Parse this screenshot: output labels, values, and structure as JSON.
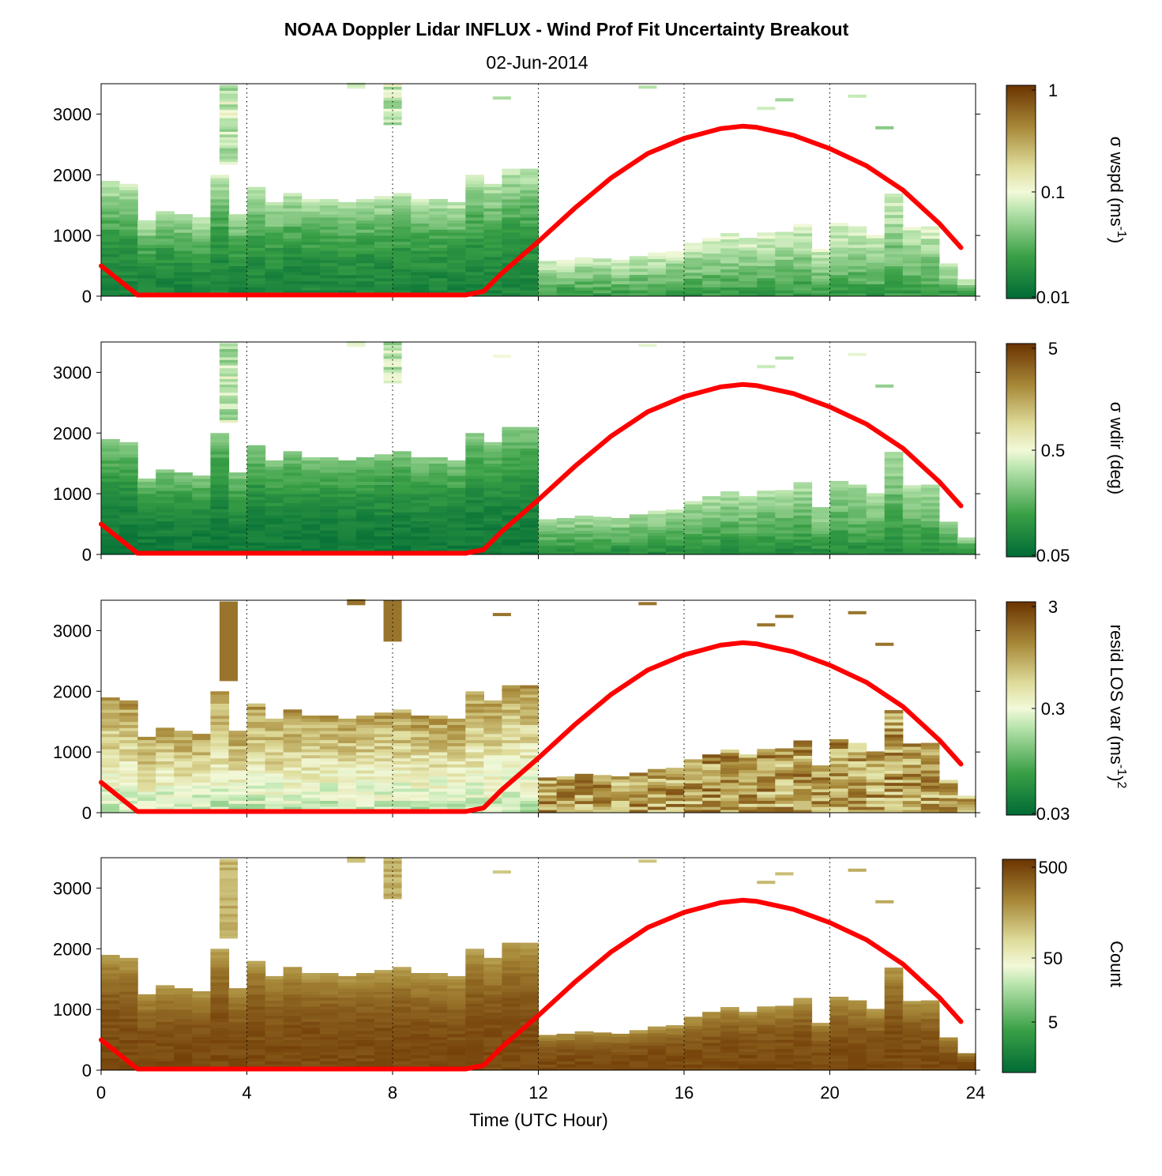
{
  "title": "NOAA Doppler Lidar INFLUX - Wind Prof Fit Uncertainty Breakout",
  "subtitle": "02-Jun-2014",
  "colors": {
    "boundary_line": "#ff0000",
    "scale_low": "#006b35",
    "scale_mid": "#f2f9d9",
    "scale_high": "#6b3300"
  },
  "chart_data": {
    "type": "heatmap",
    "xlabel": "Time (UTC Hour)",
    "xlim": [
      0,
      24
    ],
    "x_ticks": [
      "0",
      "4",
      "8",
      "12",
      "16",
      "20",
      "24"
    ],
    "ylim": [
      0,
      3500
    ],
    "y_ticks": [
      "0",
      "1000",
      "2000",
      "3000"
    ],
    "grid": "dotted vertical lines every 4 hours",
    "time_bins_hours": [
      0,
      0.5,
      1,
      1.5,
      2,
      2.5,
      3,
      3.5,
      4,
      4.5,
      5,
      5.5,
      6,
      6.5,
      7,
      7.5,
      8,
      8.5,
      9,
      9.5,
      10,
      10.5,
      11,
      11.5,
      12,
      12.5,
      13,
      13.5,
      14,
      14.5,
      15,
      15.5,
      16,
      16.5,
      17,
      17.5,
      18,
      18.5,
      19,
      19.5,
      20,
      20.5,
      21,
      21.5,
      22,
      22.5,
      23,
      23.5
    ],
    "profile_top_height_m": [
      1900,
      1850,
      1250,
      1400,
      1350,
      1300,
      2000,
      1350,
      1800,
      1550,
      1700,
      1600,
      1600,
      1550,
      1600,
      1650,
      1700,
      1600,
      1600,
      1550,
      2000,
      1850,
      2100,
      2100,
      580,
      600,
      640,
      620,
      600,
      660,
      720,
      740,
      880,
      960,
      1040,
      960,
      1050,
      1060,
      1190,
      780,
      1210,
      1150,
      1010,
      1690,
      1140,
      1150,
      540,
      280
    ],
    "boundary_layer_line": {
      "name": "",
      "x": [
        0,
        1,
        2,
        3,
        4,
        5,
        6,
        7,
        8,
        9,
        10,
        10.5,
        11,
        12,
        13,
        14,
        15,
        16,
        17,
        17.6,
        18,
        19,
        20,
        21,
        22,
        23,
        23.6
      ],
      "y": [
        500,
        20,
        20,
        20,
        20,
        20,
        20,
        20,
        20,
        20,
        20,
        80,
        380,
        900,
        1450,
        1950,
        2350,
        2600,
        2760,
        2800,
        2780,
        2650,
        2430,
        2150,
        1750,
        1200,
        800
      ]
    },
    "panels": [
      {
        "colorbar_label": "σ wspd (ms",
        "label_sup": "-1",
        "label_tail": ")",
        "colorbar_ticks": [
          "1",
          "0.1",
          "0.01"
        ],
        "log_range": [
          0.01,
          1
        ]
      },
      {
        "colorbar_label": "σ wdir (deg)",
        "label_sup": "",
        "label_tail": "",
        "colorbar_ticks": [
          "5",
          "0.5",
          "0.05"
        ],
        "log_range": [
          0.05,
          5
        ]
      },
      {
        "colorbar_label": "resid LOS var (ms",
        "label_sup": "-1",
        "label_tail": ")",
        "label_tail_sup": "2",
        "colorbar_ticks": [
          "3",
          "0.3",
          "0.03"
        ],
        "log_range": [
          0.03,
          3
        ]
      },
      {
        "colorbar_label": "Count",
        "label_sup": "",
        "label_tail": "",
        "colorbar_ticks": [
          "500",
          "50",
          "5"
        ],
        "log_range": [
          0.5,
          500
        ]
      }
    ]
  }
}
